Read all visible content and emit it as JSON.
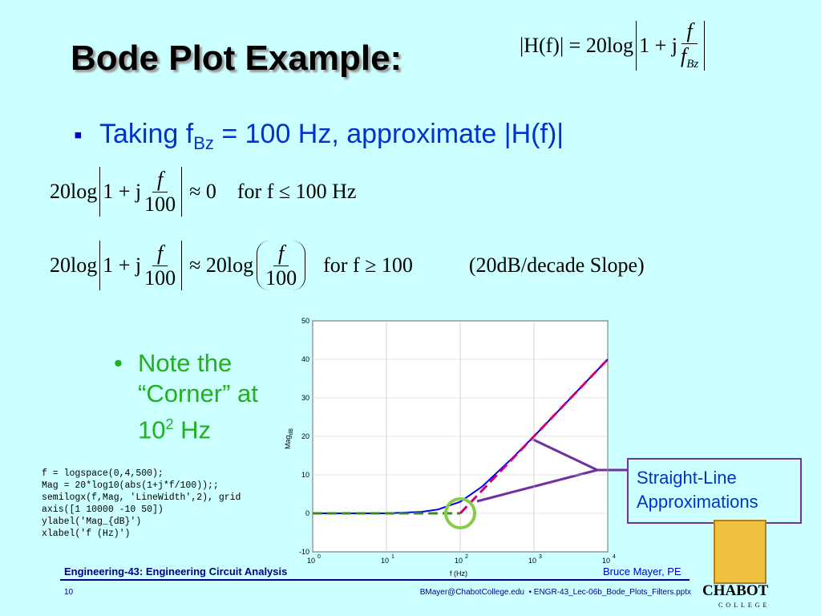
{
  "title": "Bode Plot Example:",
  "header_equation": {
    "lhs": "|H(f)| = 20log",
    "inside": "1 + j",
    "num": "f",
    "den": "f",
    "den_sub": "Bz"
  },
  "bullet": {
    "text": "Taking f",
    "sub": "Bz",
    "rest": " = 100 Hz, approximate |H(f)|"
  },
  "equation_1": {
    "prefix": "20log",
    "inside": "1 + j",
    "num": "f",
    "den": "100",
    "rest": "≈ 0    for f ≤ 100 Hz"
  },
  "equation_2": {
    "prefix": "20log",
    "inside": "1 + j",
    "num": "f",
    "den": "100",
    "mid": "≈ 20log",
    "num2": "f",
    "den2": "100",
    "rest": "for f ≥ 100",
    "note": "(20dB/decade Slope)"
  },
  "note": {
    "line1": "Note the",
    "line2": "“Corner” at",
    "base": "10",
    "sup": "2",
    "unit": " Hz"
  },
  "code": [
    "f = logspace(0,4,500);",
    "Mag = 20*log10(abs(1+j*f/100));;",
    "semilogx(f,Mag, 'LineWidth',2), grid",
    "axis([1 10000 -10 50])",
    "ylabel('Mag_{dB}')",
    "xlabel('f (Hz)')"
  ],
  "callout": [
    "Straight-Line",
    "Approximations"
  ],
  "footer": {
    "course": "Engineering-43: Engineering Circuit Analysis",
    "author": "Bruce Mayer, PE",
    "page": "10",
    "file": "BMayer@ChabotCollege.edu  • ENGR-43_Lec-06b_Bode_Plots_Filters.pptx"
  },
  "logo": {
    "name": "CHABOT",
    "sub": "COLLEGE"
  },
  "chart_data": {
    "type": "line",
    "xscale": "log",
    "grid": true,
    "xlabel": "f (Hz)",
    "ylabel": "Mag",
    "ylabel_sub": "dB",
    "xlim": [
      1,
      10000
    ],
    "ylim": [
      -10,
      50
    ],
    "xticks": [
      {
        "value": 1,
        "label": "10",
        "sup": "0"
      },
      {
        "value": 10,
        "label": "10",
        "sup": "1"
      },
      {
        "value": 100,
        "label": "10",
        "sup": "2"
      },
      {
        "value": 1000,
        "label": "10",
        "sup": "3"
      },
      {
        "value": 10000,
        "label": "10",
        "sup": "4"
      }
    ],
    "yticks": [
      -10,
      0,
      10,
      20,
      30,
      40,
      50
    ],
    "series": [
      {
        "color": "#0000ff",
        "dash": false,
        "x": [
          1,
          10,
          30,
          50,
          100,
          200,
          500,
          1000,
          2000,
          5000,
          10000
        ],
        "values": [
          0,
          0,
          0.4,
          1,
          3,
          7,
          14.2,
          20,
          26,
          34,
          40
        ]
      },
      {
        "color": "#3a8a2a",
        "dash": true,
        "x": [
          1,
          100
        ],
        "values": [
          0,
          0
        ]
      },
      {
        "color": "#cc0077",
        "dash": true,
        "x": [
          100,
          10000
        ],
        "values": [
          0,
          40
        ]
      }
    ]
  }
}
